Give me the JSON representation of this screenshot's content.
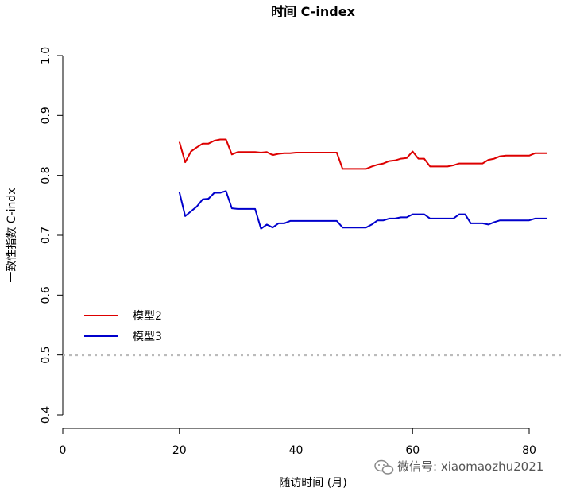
{
  "chart_data": {
    "type": "line",
    "title": "时间 C-index",
    "xlabel": "随访时间 (月)",
    "ylabel": "一致性指数 C-indx",
    "xlim": [
      0,
      84
    ],
    "ylim": [
      0.4,
      1.0
    ],
    "xticks": [
      0,
      20,
      40,
      60,
      80
    ],
    "yticks": [
      0.4,
      0.5,
      0.6,
      0.7,
      0.8,
      0.9,
      1.0
    ],
    "ytick_labels": [
      "0.4",
      "0.5",
      "0.6",
      "0.7",
      "0.8",
      "0.9",
      "1.0"
    ],
    "reference_line": {
      "y": 0.5,
      "style": "dotted",
      "color": "#bbbbbb"
    },
    "legend_position": "left",
    "series": [
      {
        "name": "模型2",
        "color": "#dd0000",
        "x": [
          20,
          21,
          22,
          23,
          24,
          25,
          26,
          27,
          28,
          29,
          30,
          31,
          32,
          33,
          34,
          35,
          36,
          37,
          38,
          39,
          40,
          47,
          48,
          50,
          52,
          53,
          54,
          55,
          56,
          57,
          58,
          59,
          60,
          61,
          62,
          63,
          64,
          65,
          66,
          67,
          68,
          69,
          70,
          71,
          72,
          73,
          74,
          75,
          76,
          77,
          78,
          79,
          80,
          81,
          82,
          83
        ],
        "y": [
          0.856,
          0.822,
          0.84,
          0.847,
          0.853,
          0.853,
          0.858,
          0.86,
          0.86,
          0.835,
          0.839,
          0.839,
          0.839,
          0.839,
          0.838,
          0.839,
          0.834,
          0.836,
          0.837,
          0.837,
          0.838,
          0.838,
          0.811,
          0.811,
          0.811,
          0.815,
          0.818,
          0.82,
          0.824,
          0.825,
          0.828,
          0.829,
          0.84,
          0.828,
          0.828,
          0.815,
          0.815,
          0.815,
          0.815,
          0.817,
          0.82,
          0.82,
          0.82,
          0.82,
          0.82,
          0.826,
          0.828,
          0.832,
          0.833,
          0.833,
          0.833,
          0.833,
          0.833,
          0.837,
          0.837,
          0.837
        ]
      },
      {
        "name": "模型3",
        "color": "#0000cc",
        "x": [
          20,
          21,
          22,
          23,
          24,
          25,
          26,
          27,
          28,
          29,
          30,
          31,
          32,
          33,
          34,
          35,
          36,
          37,
          38,
          39,
          40,
          47,
          48,
          50,
          52,
          53,
          54,
          55,
          56,
          57,
          58,
          59,
          60,
          61,
          62,
          63,
          64,
          65,
          66,
          67,
          68,
          69,
          70,
          71,
          72,
          73,
          74,
          75,
          76,
          77,
          78,
          79,
          80,
          81,
          82,
          83
        ],
        "y": [
          0.772,
          0.732,
          0.74,
          0.748,
          0.76,
          0.761,
          0.771,
          0.771,
          0.774,
          0.745,
          0.744,
          0.744,
          0.744,
          0.744,
          0.711,
          0.718,
          0.713,
          0.72,
          0.72,
          0.724,
          0.724,
          0.724,
          0.713,
          0.713,
          0.713,
          0.718,
          0.725,
          0.725,
          0.728,
          0.728,
          0.73,
          0.73,
          0.735,
          0.735,
          0.735,
          0.728,
          0.728,
          0.728,
          0.728,
          0.728,
          0.735,
          0.735,
          0.72,
          0.72,
          0.72,
          0.718,
          0.722,
          0.725,
          0.725,
          0.725,
          0.725,
          0.725,
          0.725,
          0.728,
          0.728,
          0.728
        ]
      }
    ]
  },
  "watermark": {
    "icon": "wechat-icon",
    "text": "微信号: xiaomaozhu2021"
  }
}
